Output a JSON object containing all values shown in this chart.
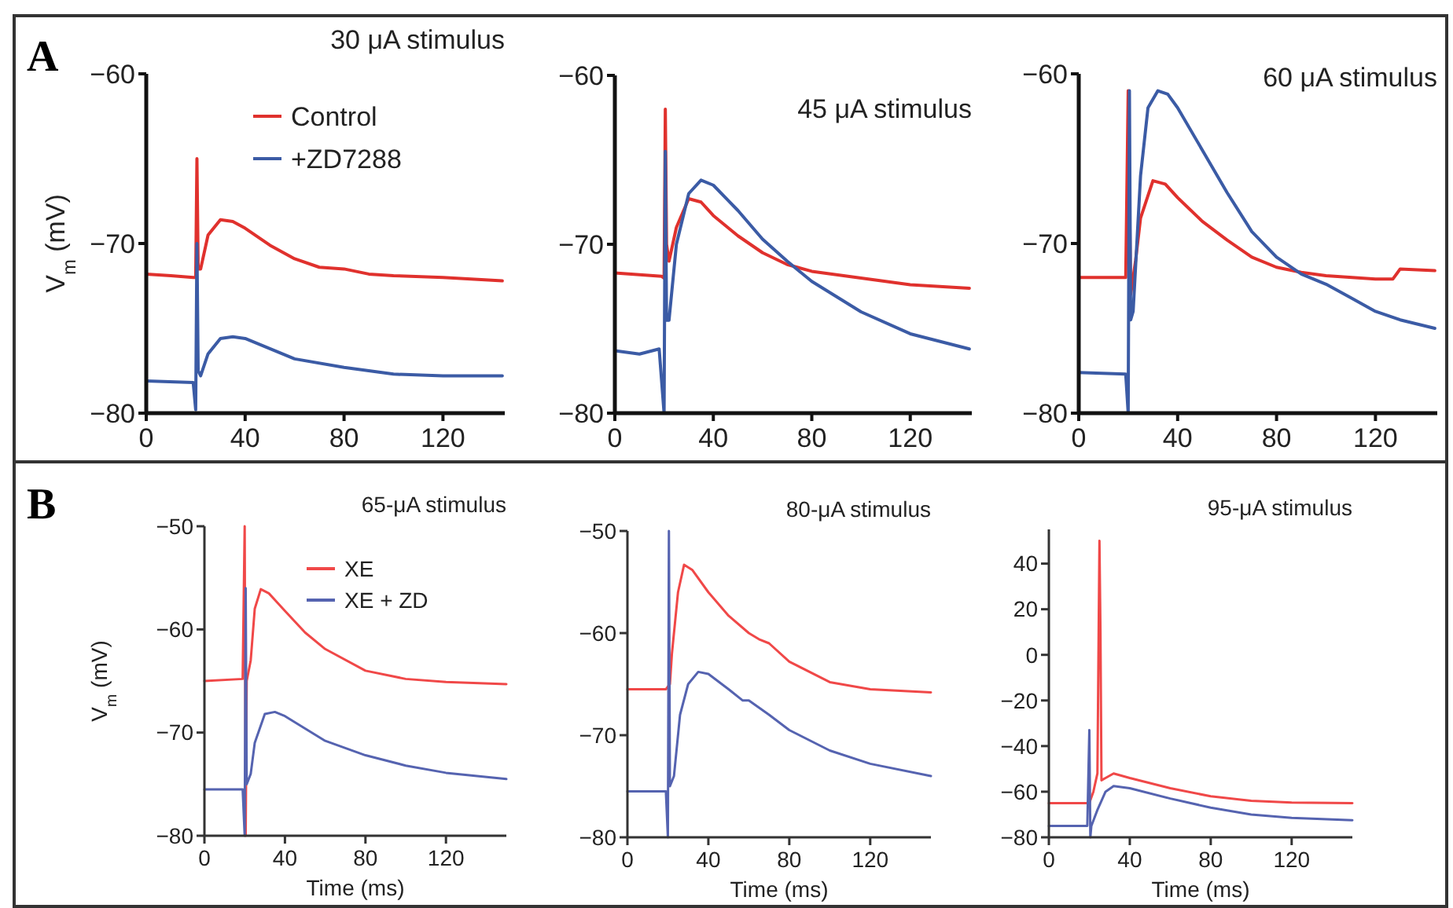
{
  "chart_data": [
    {
      "type": "line",
      "title": "30 μA stimulus",
      "ylabel": "V$_{m}$ (mV)",
      "annotations": [
        "A"
      ],
      "legend": "top right",
      "xlim": [
        0,
        145
      ],
      "xticks": [
        0,
        40,
        80,
        120
      ],
      "ylim": [
        -80,
        -60
      ],
      "yticks": [
        -80,
        -70,
        -60
      ],
      "series": [
        {
          "name": "Control",
          "color": "#e0312d",
          "x": [
            0,
            10,
            19,
            20,
            20.5,
            21,
            22,
            25,
            30,
            35,
            40,
            50,
            60,
            70,
            80,
            90,
            100,
            120,
            144
          ],
          "values": [
            -71.8,
            -71.9,
            -72,
            -72,
            -65,
            -71.5,
            -71.5,
            -69.5,
            -68.6,
            -68.7,
            -69.1,
            -70.1,
            -70.9,
            -71.4,
            -71.5,
            -71.8,
            -71.9,
            -72,
            -72.2
          ]
        },
        {
          "name": "+ZD7288",
          "color": "#3b5ba5",
          "x": [
            0,
            19,
            20,
            20.5,
            21,
            22,
            25,
            30,
            35,
            40,
            50,
            60,
            80,
            100,
            120,
            144
          ],
          "values": [
            -78.1,
            -78.2,
            -79.8,
            -70,
            -77.5,
            -77.8,
            -76.5,
            -75.6,
            -75.5,
            -75.6,
            -76.2,
            -76.8,
            -77.3,
            -77.7,
            -77.8,
            -77.8
          ]
        }
      ]
    },
    {
      "type": "line",
      "title": "45 μA stimulus",
      "xlim": [
        0,
        145
      ],
      "xticks": [
        0,
        40,
        80,
        120
      ],
      "ylim": [
        -80,
        -60
      ],
      "yticks": [
        -80,
        -70,
        -60
      ],
      "series": [
        {
          "color": "#e0312d",
          "x": [
            0,
            19,
            20,
            20.5,
            21,
            22,
            25,
            30,
            35,
            40,
            50,
            60,
            70,
            80,
            100,
            120,
            144
          ],
          "values": [
            -71.7,
            -71.9,
            -72,
            -62,
            -70,
            -71,
            -69,
            -67.3,
            -67.5,
            -68.3,
            -69.5,
            -70.5,
            -71.2,
            -71.6,
            -72,
            -72.4,
            -72.6
          ]
        },
        {
          "color": "#3b5ba5",
          "x": [
            0,
            10,
            18,
            20,
            20.5,
            21,
            22,
            25,
            30,
            35,
            40,
            50,
            60,
            70,
            80,
            100,
            120,
            144
          ],
          "values": [
            -76.3,
            -76.5,
            -76.2,
            -80,
            -64.5,
            -74.5,
            -74.5,
            -70,
            -67,
            -66.2,
            -66.5,
            -68,
            -69.7,
            -71,
            -72.2,
            -74,
            -75.3,
            -76.2
          ]
        }
      ]
    },
    {
      "type": "line",
      "title": "60 μA stimulus",
      "xlim": [
        0,
        145
      ],
      "xticks": [
        0,
        40,
        80,
        120
      ],
      "ylim": [
        -80,
        -60
      ],
      "yticks": [
        -80,
        -70,
        -60
      ],
      "series": [
        {
          "color": "#e0312d",
          "x": [
            0,
            19,
            20,
            21,
            23,
            25,
            30,
            35,
            40,
            50,
            60,
            70,
            80,
            90,
            100,
            120,
            127,
            130,
            144
          ],
          "values": [
            -72,
            -72,
            -61,
            -73,
            -71,
            -68.5,
            -66.3,
            -66.5,
            -67.3,
            -68.7,
            -69.8,
            -70.8,
            -71.4,
            -71.7,
            -71.9,
            -72.1,
            -72.1,
            -71.5,
            -71.6
          ]
        },
        {
          "color": "#3b5ba5",
          "x": [
            0,
            19,
            20,
            20.5,
            21,
            22,
            25,
            28,
            32,
            36,
            40,
            50,
            60,
            70,
            80,
            90,
            100,
            110,
            120,
            130,
            144
          ],
          "values": [
            -77.6,
            -77.7,
            -80,
            -61,
            -74.5,
            -74,
            -66,
            -62,
            -61,
            -61.2,
            -62,
            -64.5,
            -67,
            -69.3,
            -70.8,
            -71.8,
            -72.4,
            -73.2,
            -74,
            -74.5,
            -75
          ]
        }
      ]
    },
    {
      "type": "line",
      "title": "65-μA stimulus",
      "xlabel": "Time (ms)",
      "ylabel": "V$_{m}$ (mV)",
      "annotations": [
        "B"
      ],
      "legend": "top right",
      "xlim": [
        0,
        150
      ],
      "xticks": [
        0,
        40,
        80,
        120
      ],
      "ylim": [
        -80,
        -50
      ],
      "yticks": [
        -80,
        -70,
        -60,
        -50
      ],
      "series": [
        {
          "name": "XE",
          "color": "#f04848",
          "x": [
            0,
            19,
            20,
            20.5,
            21,
            23,
            25,
            28,
            32,
            40,
            50,
            60,
            80,
            100,
            120,
            150
          ],
          "values": [
            -65,
            -64.8,
            -50,
            -80,
            -65,
            -63,
            -58,
            -56.1,
            -56.5,
            -58.2,
            -60.3,
            -61.9,
            -64,
            -64.8,
            -65.1,
            -65.3
          ]
        },
        {
          "name": "XE + ZD",
          "color": "#5563b0",
          "x": [
            0,
            19,
            20,
            20.5,
            21,
            23,
            25,
            30,
            35,
            40,
            50,
            60,
            80,
            100,
            120,
            150
          ],
          "values": [
            -75.5,
            -75.5,
            -80,
            -56,
            -75,
            -74,
            -71,
            -68.2,
            -68,
            -68.4,
            -69.6,
            -70.8,
            -72.2,
            -73.2,
            -73.9,
            -74.5
          ]
        }
      ]
    },
    {
      "type": "line",
      "title": "80-μA stimulus",
      "xlabel": "Time (ms)",
      "xlim": [
        0,
        150
      ],
      "xticks": [
        0,
        40,
        80,
        120
      ],
      "ylim": [
        -80,
        -50
      ],
      "yticks": [
        -80,
        -70,
        -60,
        -50
      ],
      "series": [
        {
          "color": "#f04848",
          "x": [
            0,
            19,
            21,
            22,
            25,
            28,
            32,
            40,
            50,
            60,
            65,
            70,
            80,
            100,
            120,
            150
          ],
          "values": [
            -65.5,
            -65.5,
            -65,
            -62,
            -56,
            -53.3,
            -53.8,
            -56,
            -58.3,
            -60,
            -60.6,
            -61,
            -62.8,
            -64.8,
            -65.5,
            -65.8
          ]
        },
        {
          "color": "#5563b0",
          "x": [
            0,
            19,
            20,
            20.5,
            21,
            23,
            26,
            30,
            35,
            40,
            50,
            57,
            60,
            70,
            80,
            100,
            120,
            150
          ],
          "values": [
            -75.5,
            -75.5,
            -80,
            -50,
            -75,
            -74,
            -68,
            -65,
            -63.8,
            -64,
            -65.5,
            -66.6,
            -66.6,
            -68,
            -69.5,
            -71.5,
            -72.8,
            -74
          ]
        }
      ]
    },
    {
      "type": "line",
      "title": "95-μA stimulus",
      "xlabel": "Time (ms)",
      "xlim": [
        0,
        150
      ],
      "xticks": [
        0,
        40,
        80,
        120
      ],
      "ylim": [
        -80,
        55
      ],
      "yticks": [
        -80,
        -60,
        -40,
        -20,
        0,
        20,
        40
      ],
      "series": [
        {
          "color": "#f04848",
          "x": [
            0,
            19,
            20,
            22,
            24,
            25,
            25.5,
            26,
            28,
            32,
            40,
            60,
            80,
            100,
            120,
            150
          ],
          "values": [
            -65,
            -65,
            -65,
            -60,
            -52,
            50,
            10,
            -55,
            -54,
            -52,
            -54,
            -58.5,
            -62,
            -64,
            -64.8,
            -65
          ]
        },
        {
          "color": "#5563b0",
          "x": [
            0,
            19,
            20,
            20.5,
            21,
            24,
            28,
            32,
            40,
            60,
            80,
            100,
            120,
            150
          ],
          "values": [
            -75,
            -75,
            -33,
            -80,
            -75,
            -68,
            -60,
            -57.5,
            -58.5,
            -63,
            -67,
            -70,
            -71.5,
            -72.5
          ]
        }
      ]
    }
  ]
}
